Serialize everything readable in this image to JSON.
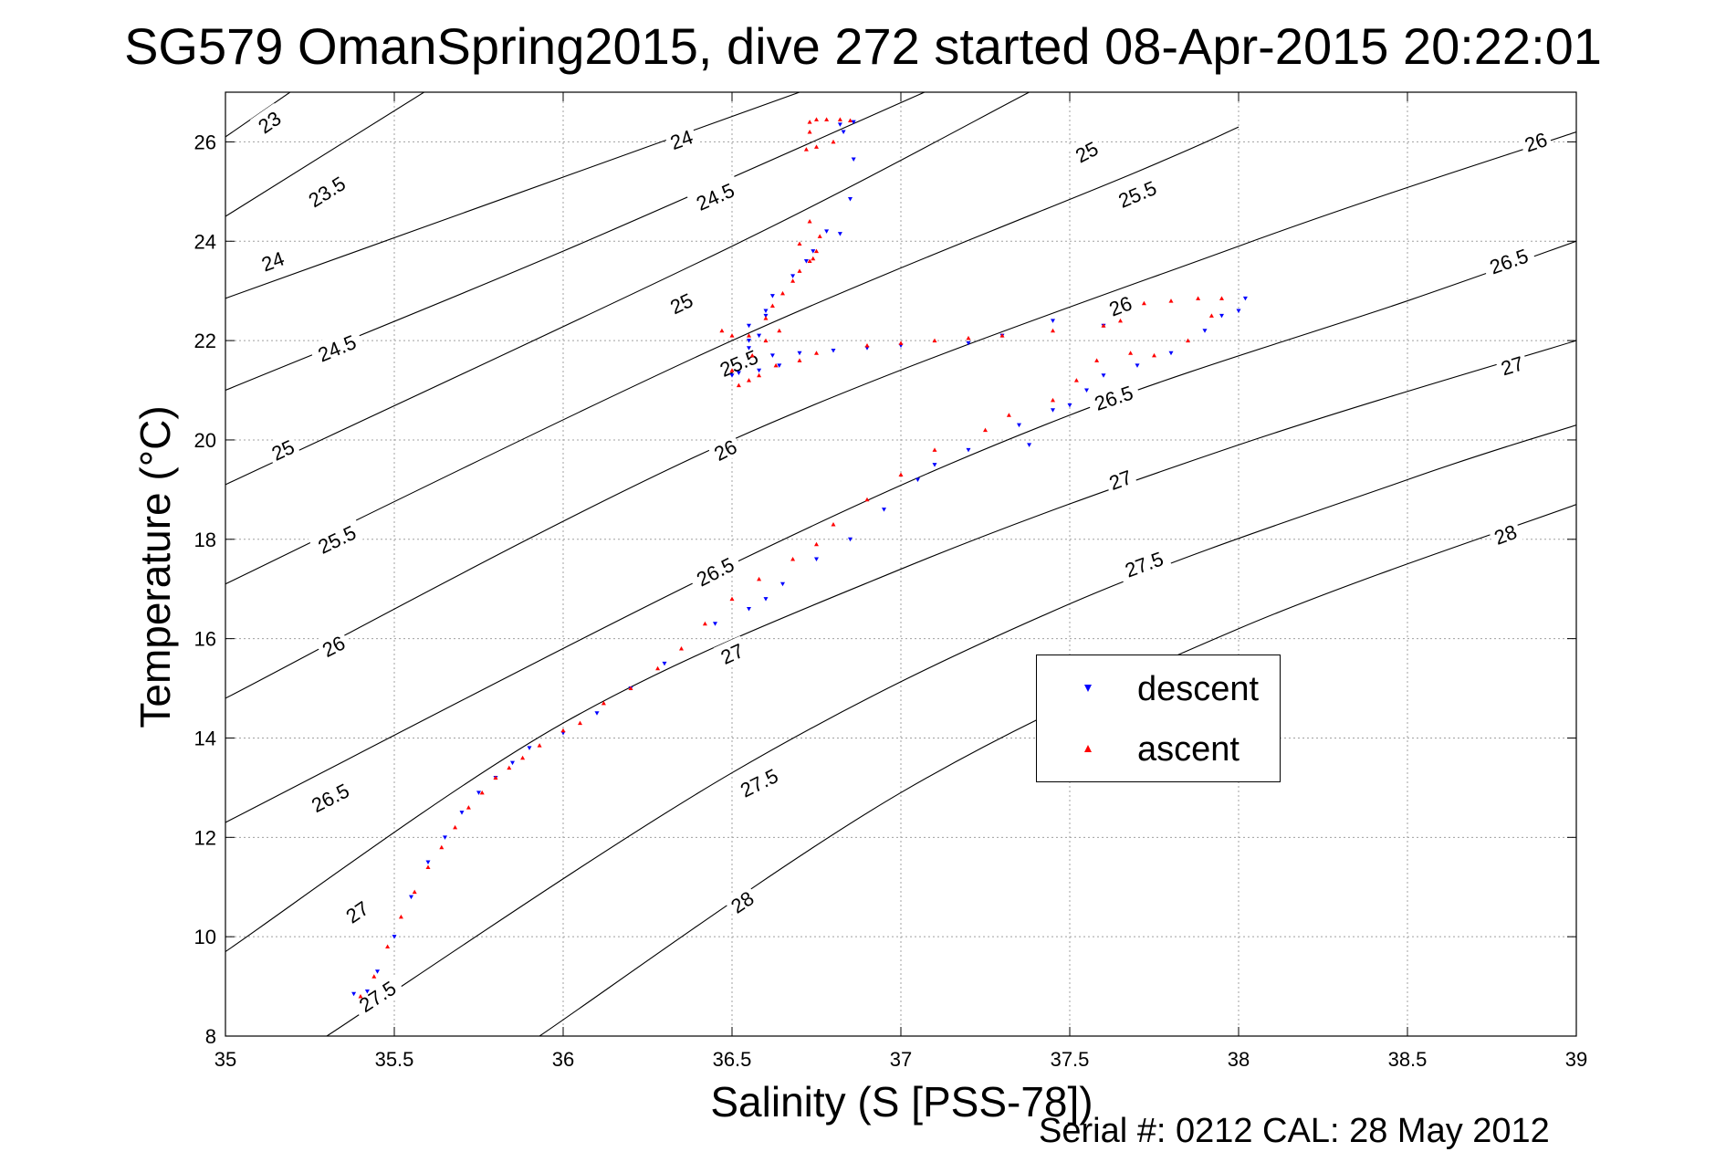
{
  "chart_data": {
    "type": "scatter",
    "title": "SG579 OmanSpring2015, dive 272 started 08-Apr-2015 20:22:01",
    "xlabel": "Salinity (S [PSS-78])",
    "ylabel": "Temperature (°C)",
    "xlim": [
      35,
      39
    ],
    "ylim": [
      8,
      27
    ],
    "xticks": [
      "35",
      "35.5",
      "36",
      "36.5",
      "37",
      "37.5",
      "38",
      "38.5",
      "39"
    ],
    "yticks": [
      "8",
      "10",
      "12",
      "14",
      "16",
      "18",
      "20",
      "22",
      "24",
      "26"
    ],
    "grid": true,
    "legend_position": "lower-right",
    "legend": [
      "descent",
      "ascent"
    ],
    "density_contours": [
      {
        "label": "23",
        "points": [
          [
            35.0,
            26.1
          ],
          [
            36.0,
            30.8
          ]
        ],
        "label_at": [
          [
            35.13,
            26.4
          ]
        ]
      },
      {
        "label": "23.5",
        "points": [
          [
            35.0,
            24.5
          ],
          [
            37.0,
            33.0
          ]
        ],
        "label_at": [
          [
            35.3,
            25.0
          ]
        ]
      },
      {
        "label": "24",
        "points": [
          [
            35.0,
            22.85
          ],
          [
            36.7,
            27.0
          ]
        ],
        "label_at": [
          [
            35.14,
            23.6
          ],
          [
            36.35,
            26.05
          ]
        ]
      },
      {
        "label": "24.5",
        "points": [
          [
            35.0,
            21.0
          ],
          [
            36.0,
            23.8
          ],
          [
            37.07,
            27.0
          ]
        ],
        "label_at": [
          [
            35.33,
            21.85
          ],
          [
            36.45,
            24.9
          ]
        ]
      },
      {
        "label": "25",
        "points": [
          [
            35.0,
            19.1
          ],
          [
            36.5,
            23.9
          ],
          [
            37.38,
            27.0
          ]
        ],
        "label_at": [
          [
            35.17,
            19.8
          ],
          [
            36.35,
            22.75
          ],
          [
            37.55,
            25.8
          ]
        ]
      },
      {
        "label": "25.5",
        "points": [
          [
            35.0,
            17.1
          ],
          [
            36.5,
            22.0
          ],
          [
            37.7,
            25.4
          ],
          [
            38.0,
            26.3
          ]
        ],
        "label_at": [
          [
            35.33,
            18.0
          ],
          [
            36.52,
            21.55
          ],
          [
            37.7,
            24.95
          ]
        ]
      },
      {
        "label": "26",
        "points": [
          [
            35.0,
            14.8
          ],
          [
            36.5,
            20.0
          ],
          [
            38.0,
            23.9
          ],
          [
            39.0,
            26.2
          ]
        ],
        "label_at": [
          [
            35.32,
            15.85
          ],
          [
            36.48,
            19.8
          ],
          [
            37.65,
            22.7
          ],
          [
            38.88,
            26.0
          ]
        ]
      },
      {
        "label": "26.5",
        "points": [
          [
            35.0,
            12.3
          ],
          [
            36.5,
            17.5
          ],
          [
            37.5,
            20.5
          ],
          [
            38.5,
            22.8
          ],
          [
            39.0,
            24.0
          ]
        ],
        "label_at": [
          [
            35.31,
            12.8
          ],
          [
            36.45,
            17.35
          ],
          [
            37.63,
            20.85
          ],
          [
            38.8,
            23.6
          ]
        ]
      },
      {
        "label": "27",
        "points": [
          [
            35.0,
            9.7
          ],
          [
            36.0,
            14.3
          ],
          [
            37.0,
            17.4
          ],
          [
            38.0,
            19.9
          ],
          [
            39.0,
            22.0
          ]
        ],
        "label_at": [
          [
            35.39,
            10.5
          ],
          [
            36.5,
            15.7
          ],
          [
            37.65,
            19.2
          ],
          [
            38.81,
            21.5
          ]
        ]
      },
      {
        "label": "27.5",
        "points": [
          [
            35.3,
            8.0
          ],
          [
            36.5,
            13.3
          ],
          [
            37.5,
            16.7
          ],
          [
            38.5,
            19.2
          ],
          [
            39.0,
            20.3
          ]
        ],
        "label_at": [
          [
            35.45,
            8.8
          ],
          [
            36.58,
            13.1
          ],
          [
            37.72,
            17.5
          ]
        ]
      },
      {
        "label": "28",
        "points": [
          [
            35.93,
            8.0
          ],
          [
            37.0,
            12.9
          ],
          [
            38.0,
            16.2
          ],
          [
            39.0,
            18.7
          ]
        ],
        "label_at": [
          [
            36.53,
            10.7
          ],
          [
            38.79,
            18.1
          ]
        ]
      }
    ],
    "series": [
      {
        "name": "descent",
        "color": "#0000ff",
        "marker": "triangle-down",
        "points": [
          [
            35.38,
            8.85
          ],
          [
            35.42,
            8.9
          ],
          [
            35.45,
            9.3
          ],
          [
            35.5,
            10.0
          ],
          [
            35.55,
            10.8
          ],
          [
            35.6,
            11.5
          ],
          [
            35.65,
            12.0
          ],
          [
            35.7,
            12.5
          ],
          [
            35.75,
            12.9
          ],
          [
            35.8,
            13.2
          ],
          [
            35.85,
            13.5
          ],
          [
            35.9,
            13.8
          ],
          [
            36.0,
            14.1
          ],
          [
            36.1,
            14.5
          ],
          [
            36.2,
            15.0
          ],
          [
            36.3,
            15.5
          ],
          [
            36.45,
            16.3
          ],
          [
            36.55,
            16.6
          ],
          [
            36.6,
            16.8
          ],
          [
            36.65,
            17.1
          ],
          [
            36.75,
            17.6
          ],
          [
            36.85,
            18.0
          ],
          [
            36.95,
            18.6
          ],
          [
            37.05,
            19.2
          ],
          [
            37.1,
            19.5
          ],
          [
            37.2,
            19.8
          ],
          [
            37.35,
            20.3
          ],
          [
            37.38,
            19.9
          ],
          [
            37.45,
            20.6
          ],
          [
            37.55,
            21.0
          ],
          [
            37.5,
            20.7
          ],
          [
            37.6,
            21.3
          ],
          [
            37.7,
            21.5
          ],
          [
            37.8,
            21.75
          ],
          [
            37.9,
            22.2
          ],
          [
            38.0,
            22.6
          ],
          [
            38.02,
            22.85
          ],
          [
            37.95,
            22.5
          ],
          [
            37.6,
            22.3
          ],
          [
            37.45,
            22.4
          ],
          [
            37.3,
            22.1
          ],
          [
            37.2,
            21.95
          ],
          [
            37.0,
            21.9
          ],
          [
            36.9,
            21.85
          ],
          [
            36.8,
            21.8
          ],
          [
            36.7,
            21.75
          ],
          [
            36.62,
            21.7
          ],
          [
            36.58,
            21.4
          ],
          [
            36.52,
            21.35
          ],
          [
            36.5,
            21.3
          ],
          [
            36.55,
            21.85
          ],
          [
            36.58,
            22.1
          ],
          [
            36.55,
            22.3
          ],
          [
            36.6,
            22.6
          ],
          [
            36.62,
            22.9
          ],
          [
            36.68,
            23.3
          ],
          [
            36.72,
            23.6
          ],
          [
            36.74,
            23.8
          ],
          [
            36.78,
            24.2
          ],
          [
            36.82,
            24.15
          ],
          [
            36.85,
            24.85
          ],
          [
            36.86,
            25.65
          ],
          [
            36.83,
            26.2
          ],
          [
            36.82,
            26.35
          ],
          [
            36.86,
            26.4
          ],
          [
            36.55,
            22.0
          ],
          [
            36.6,
            22.5
          ],
          [
            36.64,
            21.5
          ]
        ]
      },
      {
        "name": "ascent",
        "color": "#ff0000",
        "marker": "triangle-up",
        "points": [
          [
            35.4,
            8.8
          ],
          [
            35.44,
            9.2
          ],
          [
            35.48,
            9.8
          ],
          [
            35.52,
            10.4
          ],
          [
            35.56,
            10.9
          ],
          [
            35.6,
            11.4
          ],
          [
            35.64,
            11.8
          ],
          [
            35.68,
            12.2
          ],
          [
            35.72,
            12.6
          ],
          [
            35.76,
            12.9
          ],
          [
            35.8,
            13.2
          ],
          [
            35.84,
            13.4
          ],
          [
            35.88,
            13.6
          ],
          [
            35.93,
            13.85
          ],
          [
            36.0,
            14.15
          ],
          [
            36.05,
            14.3
          ],
          [
            36.12,
            14.7
          ],
          [
            36.2,
            15.0
          ],
          [
            36.28,
            15.4
          ],
          [
            36.35,
            15.8
          ],
          [
            36.42,
            16.3
          ],
          [
            36.5,
            16.8
          ],
          [
            36.58,
            17.2
          ],
          [
            36.68,
            17.6
          ],
          [
            36.75,
            17.9
          ],
          [
            36.8,
            18.3
          ],
          [
            36.9,
            18.8
          ],
          [
            37.0,
            19.3
          ],
          [
            37.1,
            19.8
          ],
          [
            37.25,
            20.2
          ],
          [
            37.32,
            20.5
          ],
          [
            37.45,
            20.8
          ],
          [
            37.52,
            21.2
          ],
          [
            37.58,
            21.6
          ],
          [
            37.68,
            21.75
          ],
          [
            37.75,
            21.7
          ],
          [
            37.85,
            22.0
          ],
          [
            37.92,
            22.5
          ],
          [
            37.95,
            22.85
          ],
          [
            37.88,
            22.85
          ],
          [
            37.8,
            22.8
          ],
          [
            37.72,
            22.75
          ],
          [
            37.65,
            22.4
          ],
          [
            37.6,
            22.3
          ],
          [
            37.45,
            22.2
          ],
          [
            37.3,
            22.1
          ],
          [
            37.2,
            22.05
          ],
          [
            37.1,
            22.0
          ],
          [
            37.0,
            21.95
          ],
          [
            36.9,
            21.9
          ],
          [
            36.75,
            21.75
          ],
          [
            36.7,
            21.6
          ],
          [
            36.63,
            21.5
          ],
          [
            36.58,
            21.3
          ],
          [
            36.55,
            21.2
          ],
          [
            36.52,
            21.1
          ],
          [
            36.5,
            21.4
          ],
          [
            36.56,
            21.7
          ],
          [
            36.5,
            22.1
          ],
          [
            36.47,
            22.2
          ],
          [
            36.55,
            22.1
          ],
          [
            36.6,
            22.0
          ],
          [
            36.64,
            22.2
          ],
          [
            36.6,
            22.45
          ],
          [
            36.62,
            22.7
          ],
          [
            36.65,
            22.95
          ],
          [
            36.68,
            23.2
          ],
          [
            36.7,
            23.4
          ],
          [
            36.73,
            23.6
          ],
          [
            36.75,
            23.8
          ],
          [
            36.7,
            23.95
          ],
          [
            36.73,
            24.4
          ],
          [
            36.76,
            24.1
          ],
          [
            36.74,
            23.65
          ],
          [
            36.75,
            26.45
          ],
          [
            36.78,
            26.45
          ],
          [
            36.82,
            26.45
          ],
          [
            36.85,
            26.43
          ],
          [
            36.73,
            26.4
          ],
          [
            36.73,
            26.2
          ],
          [
            36.75,
            25.9
          ],
          [
            36.72,
            25.85
          ],
          [
            36.8,
            26.0
          ]
        ]
      }
    ]
  },
  "title": "SG579 OmanSpring2015, dive 272 started 08-Apr-2015 20:22:01",
  "xlabel": "Salinity (S [PSS-78])",
  "ylabel": "Temperature (°C)",
  "legend": {
    "descent_label": "descent",
    "ascent_label": "ascent"
  },
  "footer": {
    "serial": "Serial #: 0212  CAL: 28 May 2012"
  }
}
